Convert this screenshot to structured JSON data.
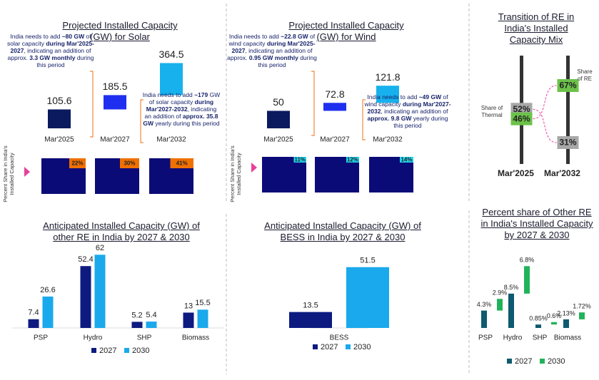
{
  "chart_data": [
    {
      "type": "waterfall",
      "title": "Projected Installed Capacity (GW) for Solar",
      "categories": [
        "Mar'2025",
        "Mar'2027",
        "Mar'2032"
      ],
      "values": [
        105.6,
        185.5,
        364.5
      ],
      "colors": [
        "#0b1a5e",
        "#1f2ff0",
        "#17b1ee"
      ],
      "ylim": [
        0,
        430
      ],
      "annotations": [
        [
          "India needs to add ",
          "~80 GW",
          " of solar capacity ",
          "during Mar'2025-2027",
          ", indicating an addition of approx. ",
          "3.3 GW monthly",
          " during this period"
        ],
        [
          "India needs to add ",
          "~179",
          " GW of solar capacity ",
          "during Mar'2027-2032",
          ", indicating an addition of ",
          "approx. 35.8 GW",
          " yearly during this period"
        ]
      ]
    },
    {
      "type": "waterfall",
      "title": "Projected Installed Capacity (GW) for Wind",
      "categories": [
        "Mar'2025",
        "Mar'2027",
        "Mar'2032"
      ],
      "values": [
        50,
        72.8,
        121.8
      ],
      "colors": [
        "#0b1a5e",
        "#1f2ff0",
        "#17b1ee"
      ],
      "ylim": [
        0,
        220
      ],
      "annotations": [
        [
          "India needs to add ",
          "~22.8 GW",
          " of wind capacity ",
          "during Mar'2025-2027",
          ", indicating an addition of approx. ",
          "0.95 GW monthly",
          " during this period"
        ],
        [
          "India needs to add ",
          "~49 GW",
          " of wind capacity ",
          "during Mar'2027-2032",
          ", indicating an addition of ",
          "approx. 9.8 GW",
          " yearly during this period"
        ]
      ]
    },
    {
      "type": "share",
      "ylabel": "Percent Share in India's Installed Capacity",
      "values": [
        22,
        30,
        41
      ],
      "value_labels": [
        "22%",
        "30%",
        "41%"
      ],
      "color": "#f07000",
      "background": "#0b0b78"
    },
    {
      "type": "share",
      "ylabel": "Percent Share in India's Installed Capacity",
      "values": [
        11,
        12,
        14
      ],
      "value_labels": [
        "11%",
        "12%",
        "14%"
      ],
      "color": "#22d6f0",
      "background": "#0b0b78"
    },
    {
      "type": "slope",
      "title": "Transition of RE in India's Installed Capacity Mix",
      "categories": [
        "Mar'2025",
        "Mar'2032"
      ],
      "ylim": [
        15,
        85
      ],
      "series": [
        {
          "name": "Share of Thermal",
          "color": "#a8a8a8",
          "values": [
            52,
            31
          ],
          "value_labels": [
            "52%",
            "31%"
          ]
        },
        {
          "name": "Share of RE",
          "color": "#6cc24a",
          "values": [
            46,
            67
          ],
          "value_labels": [
            "46%",
            "67%"
          ]
        }
      ]
    },
    {
      "type": "bar",
      "title": "Anticipated Installed Capacity (GW) of other RE in India by 2027 & 2030",
      "categories": [
        "PSP",
        "Hydro",
        "SHP",
        "Biomass"
      ],
      "ylim": [
        0,
        64
      ],
      "series": [
        {
          "name": "2027",
          "color": "#0d1a80",
          "values": [
            7.4,
            52.4,
            5.2,
            13
          ]
        },
        {
          "name": "2030",
          "color": "#1aa9ec",
          "values": [
            26.6,
            62,
            5.4,
            15.5
          ]
        }
      ]
    },
    {
      "type": "bar",
      "title": "Anticipated Installed Capacity (GW) of BESS in India by 2027 & 2030",
      "categories": [
        "BESS"
      ],
      "ylim": [
        0,
        64
      ],
      "series": [
        {
          "name": "2027",
          "color": "#0d1a80",
          "values": [
            13.5
          ]
        },
        {
          "name": "2030",
          "color": "#1aa9ec",
          "values": [
            51.5
          ]
        }
      ]
    },
    {
      "type": "stacked_bar",
      "title": "Percent share of Other RE in India's Installed Capacity by 2027 & 2030",
      "categories": [
        "PSP",
        "Hydro",
        "SHP",
        "Biomass"
      ],
      "ylim": [
        0,
        18
      ],
      "series": [
        {
          "name": "2027",
          "color": "#0e5a6e",
          "values": [
            4.3,
            8.5,
            0.85,
            2.13
          ],
          "value_labels": [
            "4.3%",
            "8.5%",
            "0.85%",
            "2.13%"
          ]
        },
        {
          "name": "2030",
          "color": "#22b35a",
          "values": [
            2.9,
            6.8,
            0.6,
            1.72
          ],
          "value_labels": [
            "2.9%",
            "6.8%",
            "0.6%",
            "1.72%"
          ]
        }
      ]
    }
  ]
}
